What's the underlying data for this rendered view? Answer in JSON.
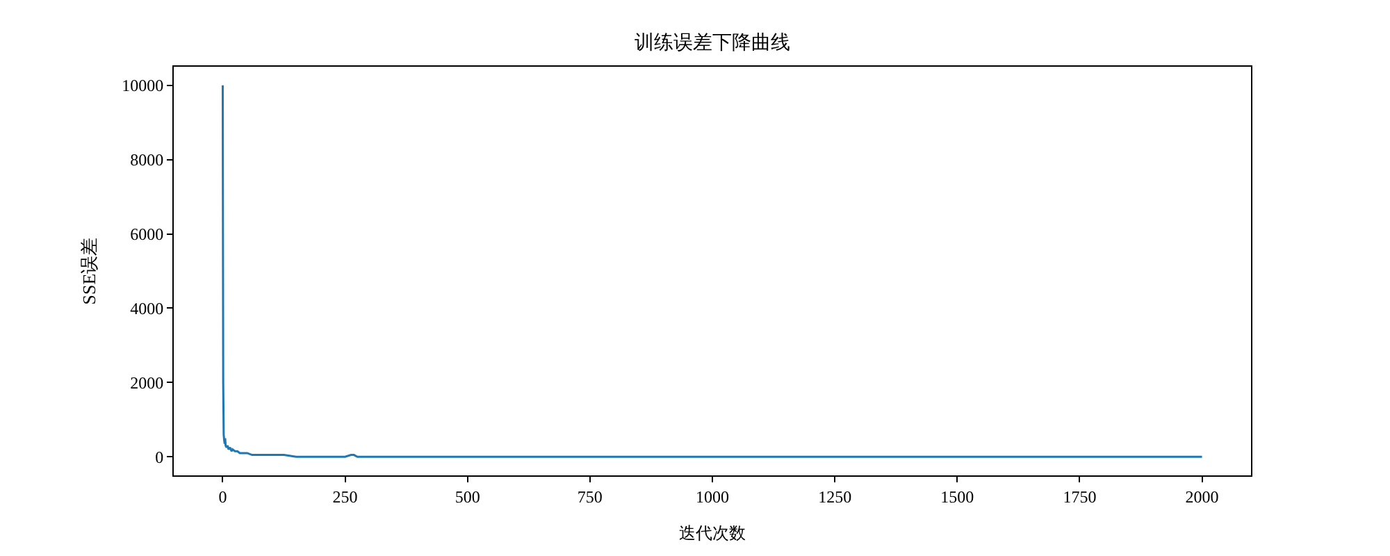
{
  "chart_data": {
    "type": "line",
    "title": "训练误差下降曲线",
    "xlabel": "迭代次数",
    "ylabel": "SSE误差",
    "series": [
      {
        "color": "#1f77b4",
        "x": [
          0,
          1,
          2,
          3,
          4,
          5,
          6,
          8,
          10,
          12,
          15,
          18,
          20,
          25,
          30,
          35,
          40,
          50,
          60,
          80,
          100,
          125,
          150,
          200,
          250,
          262,
          268,
          275,
          300,
          400,
          500,
          750,
          1000,
          1250,
          1500,
          1750,
          2000
        ],
        "values": [
          10000,
          2000,
          600,
          450,
          350,
          500,
          300,
          250,
          300,
          200,
          250,
          150,
          200,
          150,
          150,
          100,
          100,
          100,
          50,
          50,
          50,
          50,
          0,
          0,
          0,
          50,
          50,
          0,
          0,
          0,
          0,
          0,
          0,
          0,
          0,
          0,
          0
        ]
      }
    ],
    "xlim": [
      -100,
      2100
    ],
    "ylim": [
      -500,
      10500
    ],
    "xticks": [
      0,
      250,
      500,
      750,
      1000,
      1250,
      1500,
      1750,
      2000
    ],
    "yticks": [
      0,
      2000,
      4000,
      6000,
      8000,
      10000
    ]
  }
}
